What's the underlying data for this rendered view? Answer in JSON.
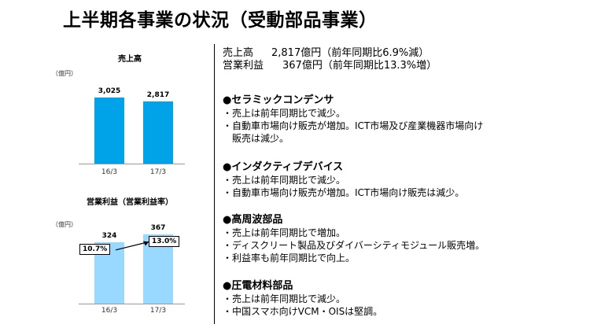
{
  "title": "上半期各事業の状況（受動部品事業）",
  "chart_data": [
    {
      "type": "bar",
      "title": "売上高",
      "unit_label": "（億円）",
      "categories": [
        "16/3",
        "17/3"
      ],
      "values": [
        3025,
        2817
      ],
      "value_labels": [
        "3,025",
        "2,817"
      ],
      "ylim": [
        0,
        3300
      ]
    },
    {
      "type": "bar",
      "title": "営業利益（営業利益率）",
      "unit_label": "（億円）",
      "categories": [
        "16/3",
        "17/3"
      ],
      "values": [
        324,
        367
      ],
      "value_labels": [
        "324",
        "367"
      ],
      "rates": [
        10.7,
        13.0
      ],
      "rate_labels": [
        "10.7%",
        "13.0%"
      ],
      "ylim": [
        0,
        400
      ]
    }
  ],
  "colors": {
    "bar1": "#00a2e8",
    "bar2": "#99d9ff",
    "panel_bg": "#ffffff"
  },
  "summary": {
    "sales_label": "売上高",
    "sales_value": "2,817億円（前年同期比6.9%減）",
    "profit_label": "営業利益",
    "profit_value": "367億円（前年同期比13.3%増）"
  },
  "sections": [
    {
      "heading": "●セラミックコンデンサ",
      "bullets": [
        "・売上は前年同期比で減少。",
        "・自動車市場向け販売が増加。ICT市場及び産業機器市場向け",
        "販売は減少。"
      ]
    },
    {
      "heading": "●インダクティブデバイス",
      "bullets": [
        "・売上は前年同期比で減少。",
        "・自動車市場向け販売が増加。ICT市場向け販売は減少。"
      ]
    },
    {
      "heading": "●高周波部品",
      "bullets": [
        "・売上は前年同期比で増加。",
        "・ディスクリート製品及びダイバーシティモジュール販売増。",
        "・利益率も前年同期比で向上。"
      ]
    },
    {
      "heading": "●圧電材料部品",
      "bullets": [
        "・売上は前年同期比で減少。",
        "・中国スマホ向けVCM・OISは堅調。"
      ]
    }
  ]
}
